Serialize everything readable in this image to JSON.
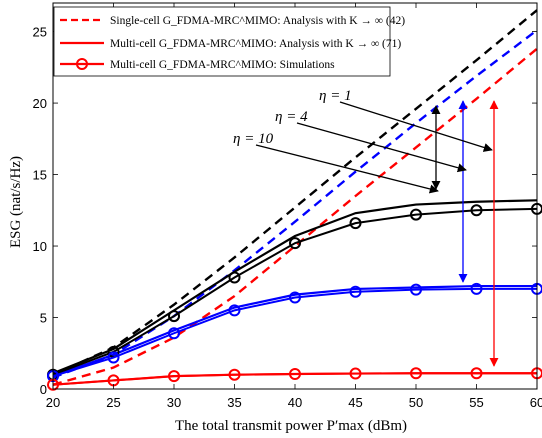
{
  "chart_data": {
    "type": "line",
    "xlabel": "The total transmit power P′max (dBm)",
    "ylabel": "ESG (nat/s/Hz)",
    "xlim": [
      20,
      60
    ],
    "ylim": [
      0,
      27
    ],
    "xticks": [
      20,
      25,
      30,
      35,
      40,
      45,
      50,
      55,
      60
    ],
    "yticks": [
      0,
      5,
      10,
      15,
      20,
      25
    ],
    "legend": {
      "placement": "top-left",
      "entries": [
        {
          "style": "dashed-red",
          "label": "Single-cell G_FDMA-MRC^MIMO: Analysis with K → ∞ (42)"
        },
        {
          "style": "solid-red",
          "label": "Multi-cell G_FDMA-MRC^MIMO: Analysis with K → ∞ (71)"
        },
        {
          "style": "red-circle",
          "label": "Multi-cell G_FDMA-MRC^MIMO: Simulations"
        }
      ]
    },
    "annotations": [
      "η = 1",
      "η = 4",
      "η = 10"
    ],
    "x": [
      20,
      25,
      30,
      35,
      40,
      45,
      50,
      55,
      60
    ],
    "series": [
      {
        "group": "single-cell",
        "eta": 10,
        "color": "#000000",
        "values": [
          1.0,
          2.9,
          5.9,
          9.2,
          12.7,
          16.2,
          19.6,
          23.0,
          26.5
        ]
      },
      {
        "group": "single-cell",
        "eta": 4,
        "color": "#0000ff",
        "values": [
          0.8,
          2.4,
          5.1,
          8.3,
          11.7,
          15.2,
          18.6,
          21.9,
          25.1
        ]
      },
      {
        "group": "single-cell",
        "eta": 1,
        "color": "#ff0000",
        "values": [
          0.3,
          1.5,
          3.6,
          6.5,
          10.0,
          13.5,
          16.9,
          20.3,
          23.8
        ]
      },
      {
        "group": "multi-cell",
        "eta": 10,
        "color": "#000000",
        "values": [
          1.1,
          2.8,
          5.5,
          8.2,
          10.7,
          12.3,
          12.9,
          13.1,
          13.2
        ]
      },
      {
        "group": "multi-cell",
        "eta": 4,
        "color": "#0000ff",
        "values": [
          0.9,
          2.4,
          4.1,
          5.7,
          6.6,
          7.0,
          7.1,
          7.2,
          7.2
        ]
      },
      {
        "group": "multi-cell",
        "eta": 1,
        "color": "#ff0000",
        "values": [
          0.3,
          0.6,
          0.9,
          1.0,
          1.05,
          1.08,
          1.1,
          1.1,
          1.1
        ]
      },
      {
        "group": "simulation",
        "eta": 10,
        "color": "#000000",
        "values": [
          1.0,
          2.6,
          5.1,
          7.8,
          10.2,
          11.6,
          12.2,
          12.5,
          12.6
        ]
      },
      {
        "group": "simulation",
        "eta": 4,
        "color": "#0000ff",
        "values": [
          0.9,
          2.2,
          3.9,
          5.5,
          6.4,
          6.8,
          6.95,
          7.0,
          7.0
        ]
      },
      {
        "group": "simulation",
        "eta": 1,
        "color": "#ff0000",
        "values": [
          0.3,
          0.6,
          0.9,
          1.0,
          1.05,
          1.08,
          1.1,
          1.1,
          1.1
        ]
      }
    ]
  }
}
